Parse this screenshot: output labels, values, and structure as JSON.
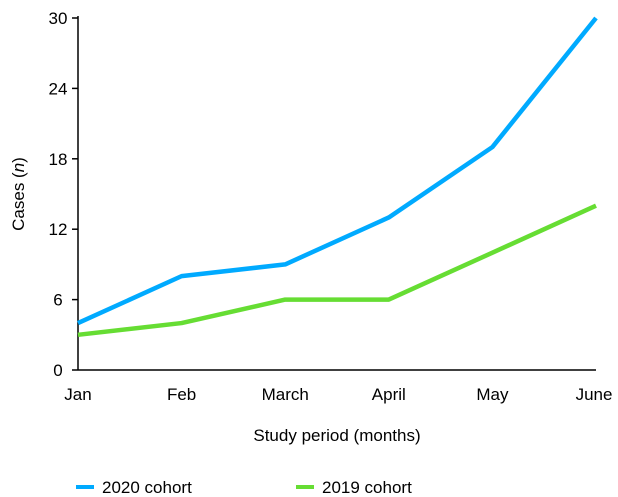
{
  "chart_data": {
    "type": "line",
    "title": "",
    "xlabel": "Study period (months)",
    "ylabel_prefix": "Cases (",
    "ylabel_italic": "n",
    "ylabel_suffix": ")",
    "categories": [
      "Jan",
      "Feb",
      "March",
      "April",
      "May",
      "June"
    ],
    "yticks": [
      0,
      6,
      12,
      18,
      24,
      30
    ],
    "ylim": [
      0,
      30
    ],
    "grid": false,
    "legend_position": "bottom",
    "series": [
      {
        "name": "2020 cohort",
        "color": "#00aaff",
        "values": [
          4,
          8,
          9,
          13,
          19,
          30
        ]
      },
      {
        "name": "2019 cohort",
        "color": "#66dd33",
        "values": [
          3,
          4,
          6,
          6,
          10,
          14
        ]
      }
    ]
  }
}
